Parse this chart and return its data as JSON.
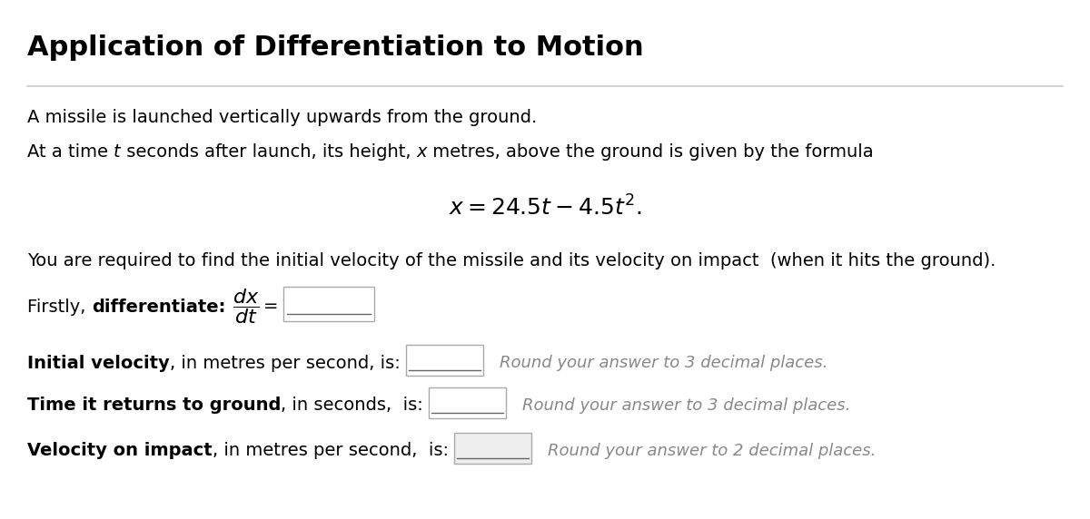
{
  "title": "Application of Differentiation to Motion",
  "title_fontsize": 22,
  "bg_color": "#ffffff",
  "text_color": "#000000",
  "separator_color": "#cccccc",
  "body_fontsize": 14,
  "hint_fontsize": 13,
  "hint_color": "#888888",
  "q1_hint": "Round your answer to 3 decimal places.",
  "q2_hint": "Round your answer to 3 decimal places.",
  "q3_hint": "Round your answer to 2 decimal places."
}
